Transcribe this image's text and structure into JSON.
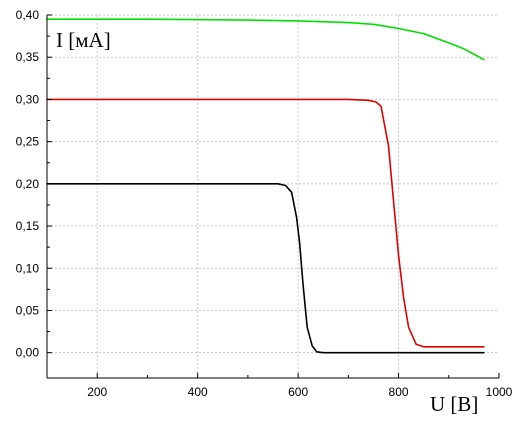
{
  "chart_data": {
    "type": "line",
    "xlabel": "U [B]",
    "ylabel": "I [мА]",
    "xlim": [
      100,
      1000
    ],
    "ylim": [
      -0.03,
      0.4
    ],
    "x_ticks": [
      200,
      400,
      600,
      800,
      1000
    ],
    "x_tick_labels": [
      "200",
      "400",
      "600",
      "800",
      "1000"
    ],
    "y_ticks": [
      0.0,
      0.05,
      0.1,
      0.15,
      0.2,
      0.25,
      0.3,
      0.35,
      0.4
    ],
    "y_tick_labels": [
      "0,00",
      "0,05",
      "0,10",
      "0,15",
      "0,20",
      "0,25",
      "0,30",
      "0,35",
      "0,40"
    ],
    "grid": true,
    "legend": "none",
    "series": [
      {
        "color": "#00e000",
        "x": [
          100,
          300,
          500,
          600,
          700,
          750,
          800,
          850,
          900,
          930,
          955,
          970
        ],
        "y": [
          0.395,
          0.395,
          0.394,
          0.393,
          0.391,
          0.389,
          0.384,
          0.378,
          0.367,
          0.36,
          0.352,
          0.347
        ]
      },
      {
        "color": "#e00000",
        "x": [
          100,
          300,
          500,
          700,
          740,
          755,
          765,
          780,
          790,
          800,
          810,
          820,
          835,
          850,
          900,
          970
        ],
        "y": [
          0.3,
          0.3,
          0.3,
          0.3,
          0.299,
          0.297,
          0.292,
          0.245,
          0.18,
          0.115,
          0.065,
          0.03,
          0.01,
          0.007,
          0.007,
          0.007
        ]
      },
      {
        "color": "#000000",
        "x": [
          100,
          300,
          500,
          560,
          575,
          587,
          597,
          603,
          610,
          618,
          628,
          637,
          650,
          800,
          970
        ],
        "y": [
          0.2,
          0.2,
          0.2,
          0.2,
          0.198,
          0.19,
          0.16,
          0.13,
          0.08,
          0.03,
          0.008,
          0.001,
          0.0,
          0.0,
          0.0
        ]
      }
    ]
  }
}
